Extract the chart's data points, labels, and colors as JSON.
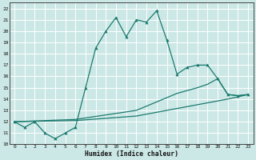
{
  "xlabel": "Humidex (Indice chaleur)",
  "ylabel": "",
  "xlim": [
    -0.5,
    23.5
  ],
  "ylim": [
    10,
    22.5
  ],
  "yticks": [
    10,
    11,
    12,
    13,
    14,
    15,
    16,
    17,
    18,
    19,
    20,
    21,
    22
  ],
  "xticks": [
    0,
    1,
    2,
    3,
    4,
    5,
    6,
    7,
    8,
    9,
    10,
    11,
    12,
    13,
    14,
    15,
    16,
    17,
    18,
    19,
    20,
    21,
    22,
    23
  ],
  "bg_color": "#cce8e6",
  "grid_color": "#ffffff",
  "line_color": "#1a7a6e",
  "series": [
    {
      "x": [
        0,
        1,
        2,
        3,
        4,
        5,
        6,
        7,
        8,
        9,
        10,
        11,
        12,
        13,
        14,
        15,
        16,
        17,
        18,
        19,
        20,
        21,
        22,
        23
      ],
      "y": [
        12.0,
        11.5,
        12.0,
        11.0,
        10.5,
        11.0,
        11.5,
        15.0,
        18.5,
        20.0,
        21.2,
        19.5,
        21.0,
        20.8,
        21.8,
        19.2,
        16.2,
        16.8,
        17.0,
        17.0,
        15.8,
        14.4,
        14.3,
        14.4
      ],
      "marker": "^",
      "linewidth": 0.9,
      "markersize": 2.2
    },
    {
      "x": [
        0,
        6,
        12,
        16,
        18,
        19,
        20,
        21,
        22,
        23
      ],
      "y": [
        12.0,
        12.2,
        13.0,
        14.5,
        15.0,
        15.3,
        15.8,
        14.4,
        14.3,
        14.4
      ],
      "marker": null,
      "linewidth": 0.9
    },
    {
      "x": [
        0,
        6,
        12,
        18,
        21,
        22,
        23
      ],
      "y": [
        12.0,
        12.1,
        12.5,
        13.5,
        14.0,
        14.2,
        14.4
      ],
      "marker": null,
      "linewidth": 0.9
    }
  ]
}
